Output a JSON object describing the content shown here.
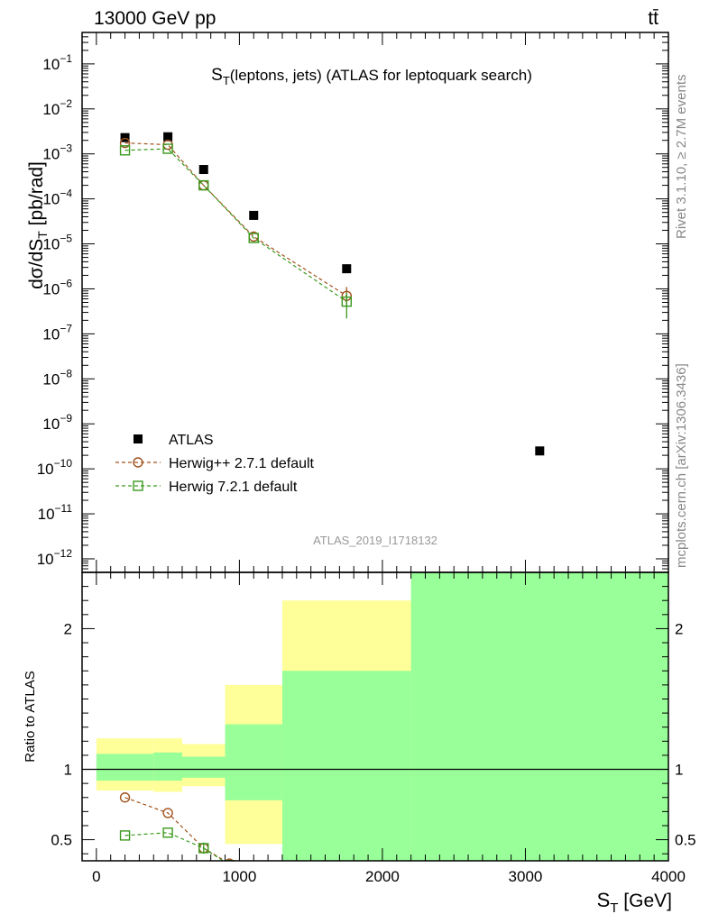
{
  "header": {
    "left": "13000 GeV pp",
    "right": "tt̄"
  },
  "side_labels": {
    "rivet": "Rivet 3.1.10, ≥ 2.7M events",
    "mcplots": "mcplots.cern.ch [arXiv:1306.3436]"
  },
  "watermark": "ATLAS_2019_I1718132",
  "chart_data": [
    {
      "type": "scatter",
      "panel": "main",
      "title_main": "S",
      "title_sub": "T",
      "title_rest": "(leptons, jets) (ATLAS for leptoquark search)",
      "ylabel": "dσ/dS_T [pb/rad]",
      "yscale": "log",
      "ylim": [
        5e-13,
        0.5
      ],
      "xlim": [
        -100,
        4000
      ],
      "ytick_exponents": [
        -12,
        -11,
        -10,
        -9,
        -8,
        -7,
        -6,
        -5,
        -4,
        -3,
        -2,
        -1
      ],
      "legend_position": "bottom-left",
      "colors": {
        "data": "#000000",
        "herwigpp": "#a0521e",
        "herwig7": "#3b9a1e"
      },
      "series": [
        {
          "name": "ATLAS",
          "marker": "filled-square",
          "x": [
            200,
            500,
            750,
            1100,
            1750,
            3100
          ],
          "y": [
            0.0023,
            0.0024,
            0.00045,
            4.3e-05,
            2.8e-06,
            2.5e-10
          ]
        },
        {
          "name": "Herwig++ 2.7.1 default",
          "marker": "open-circle",
          "linestyle": "dashed",
          "x": [
            200,
            500,
            750,
            1100,
            1750
          ],
          "y": [
            0.00175,
            0.0016,
            0.0002,
            1.45e-05,
            7e-07
          ],
          "err_low": [
            0,
            0,
            0,
            0,
            3e-07
          ],
          "err_high": [
            0,
            0,
            0,
            0,
            4e-07
          ]
        },
        {
          "name": "Herwig 7.2.1 default",
          "marker": "open-square",
          "linestyle": "dashed",
          "x": [
            200,
            500,
            750,
            1100,
            1750
          ],
          "y": [
            0.0012,
            0.0013,
            0.0002,
            1.35e-05,
            5.2e-07
          ],
          "err_low": [
            0,
            0,
            0,
            0,
            3e-07
          ],
          "err_high": [
            0,
            0,
            0,
            0,
            3e-07
          ]
        }
      ]
    },
    {
      "type": "scatter",
      "panel": "ratio",
      "ylabel": "Ratio to ATLAS",
      "xlabel_main": "S",
      "xlabel_sub": "T",
      "xlabel_rest": " [GeV]",
      "ylim": [
        0.35,
        2.4
      ],
      "xlim": [
        -100,
        4000
      ],
      "xticks": [
        0,
        1000,
        2000,
        3000,
        4000
      ],
      "yticks": [
        0.5,
        1,
        2
      ],
      "bands": [
        {
          "x0": 0,
          "x1": 400,
          "yellow": [
            0.85,
            1.22
          ],
          "green": [
            0.92,
            1.11
          ]
        },
        {
          "x0": 400,
          "x1": 600,
          "yellow": [
            0.84,
            1.22
          ],
          "green": [
            0.92,
            1.12
          ]
        },
        {
          "x0": 600,
          "x1": 900,
          "yellow": [
            0.88,
            1.18
          ],
          "green": [
            0.94,
            1.09
          ]
        },
        {
          "x0": 900,
          "x1": 1300,
          "yellow": [
            0.47,
            1.6
          ],
          "green": [
            0.78,
            1.32
          ]
        },
        {
          "x0": 1300,
          "x1": 2200,
          "yellow": [
            0.35,
            2.2
          ],
          "green": [
            0.35,
            1.7
          ]
        },
        {
          "x0": 2200,
          "x1": 4000,
          "yellow": [
            0.35,
            2.4
          ],
          "green": [
            0.35,
            2.4
          ]
        }
      ],
      "series": [
        {
          "name": "Herwig++ 2.7.1 default",
          "marker": "open-circle",
          "x": [
            200,
            500,
            750,
            930
          ],
          "y": [
            0.8,
            0.69,
            0.44,
            0.33
          ]
        },
        {
          "name": "Herwig 7.2.1 default",
          "marker": "open-square",
          "x": [
            200,
            500,
            750,
            930
          ],
          "y": [
            0.53,
            0.55,
            0.44,
            0.32
          ],
          "err_low": [
            0,
            0,
            0.04,
            0
          ],
          "err_high": [
            0,
            0,
            0.04,
            0
          ]
        }
      ]
    }
  ]
}
